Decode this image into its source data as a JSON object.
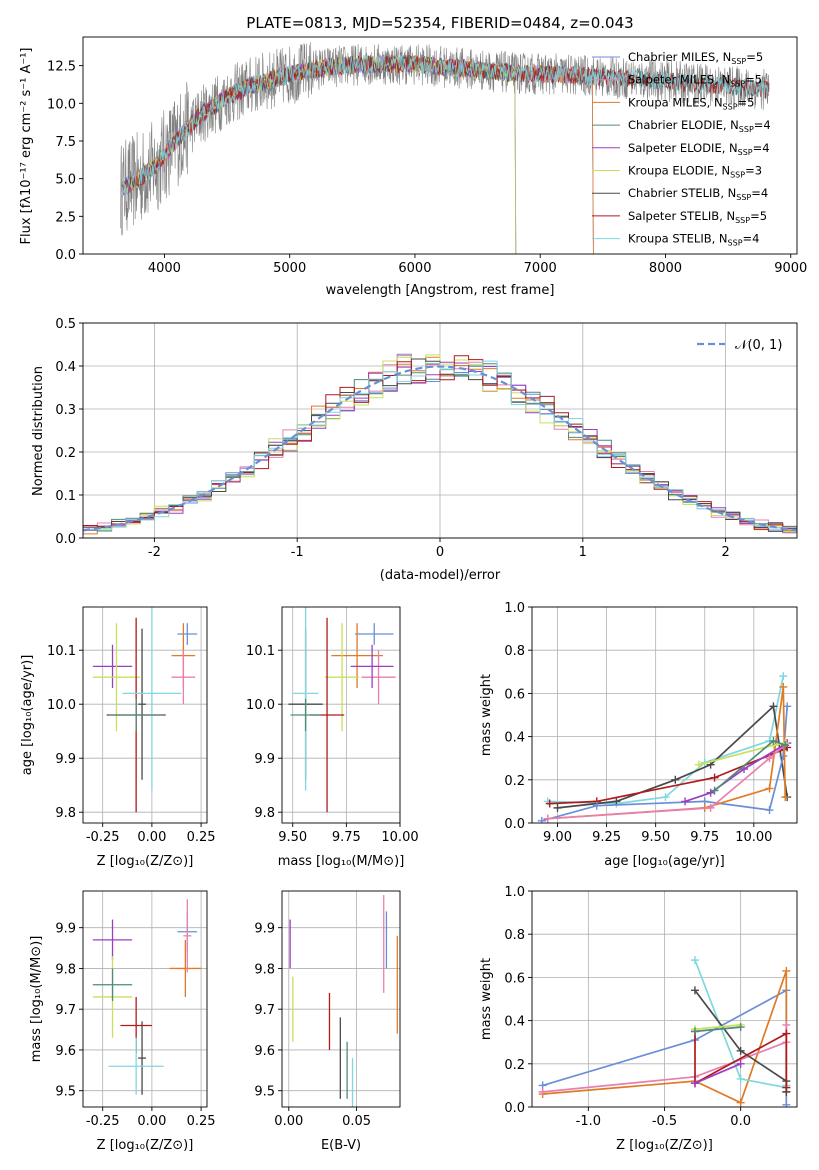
{
  "title": "PLATE=0813, MJD=52354, FIBERID=0484, z=0.043",
  "chart_data": [
    {
      "type": "line",
      "panel": "spectrum",
      "xlabel": "wavelength [Angstrom, rest frame]",
      "ylabel": "Flux [fλ10⁻¹⁷ erg cm⁻² s⁻¹ A⁻¹]",
      "xlim": [
        3350,
        9050
      ],
      "ylim": [
        0,
        14.4
      ],
      "xticks": [
        4000,
        5000,
        6000,
        7000,
        8000,
        9000
      ],
      "yticks": [
        0.0,
        2.5,
        5.0,
        7.5,
        10.0,
        12.5
      ],
      "legend_position": "top-right",
      "continuum": {
        "x": [
          3650,
          3800,
          3950,
          4100,
          4300,
          4500,
          4700,
          5000,
          5300,
          5600,
          6000,
          6400,
          6800,
          7200,
          7600,
          8000,
          8400,
          8830
        ],
        "y": [
          4.3,
          5.0,
          6.0,
          7.6,
          9.3,
          10.4,
          11.2,
          11.9,
          12.4,
          12.6,
          12.6,
          12.3,
          12.0,
          11.9,
          11.7,
          11.5,
          11.2,
          10.9
        ]
      },
      "series": [
        {
          "name": "Chabrier MILES, N$_{SSP}$=5",
          "legend": "Chabrier MILES, N",
          "sub": "SSP",
          "suffix": "=5",
          "color": "#6a8fd8",
          "xmax": 7420
        },
        {
          "name": "Salpeter MILES, N$_{SSP}$=5",
          "legend": "Salpeter MILES, N",
          "sub": "SSP",
          "suffix": "=5",
          "color": "#e87fb0",
          "xmax": 7420
        },
        {
          "name": "Kroupa MILES, N$_{SSP}$=5",
          "legend": "Kroupa MILES, N",
          "sub": "SSP",
          "suffix": "=5",
          "color": "#e07a25",
          "xmax": 7420
        },
        {
          "name": "Chabrier ELODIE, N$_{SSP}$=4",
          "legend": "Chabrier ELODIE, N",
          "sub": "SSP",
          "suffix": "=4",
          "color": "#4f8a7a",
          "xmax": 6800
        },
        {
          "name": "Salpeter ELODIE, N$_{SSP}$=4",
          "legend": "Salpeter ELODIE, N",
          "sub": "SSP",
          "suffix": "=4",
          "color": "#9b3fc2",
          "xmax": 6800
        },
        {
          "name": "Kroupa ELODIE, N$_{SSP}$=3",
          "legend": "Kroupa ELODIE, N",
          "sub": "SSP",
          "suffix": "=3",
          "color": "#c8e05a",
          "xmax": 6800
        },
        {
          "name": "Chabrier STELIB, N$_{SSP}$=4",
          "legend": "Chabrier STELIB, N",
          "sub": "SSP",
          "suffix": "=4",
          "color": "#4a4a4a",
          "xmax": 8830
        },
        {
          "name": "Salpeter STELIB, N$_{SSP}$=5",
          "legend": "Salpeter STELIB, N",
          "sub": "SSP",
          "suffix": "=5",
          "color": "#b01a1a",
          "xmax": 8830
        },
        {
          "name": "Kroupa STELIB, N$_{SSP}$=4",
          "legend": "Kroupa STELIB, N",
          "sub": "SSP",
          "suffix": "=4",
          "color": "#7fd8e0",
          "xmax": 8830
        }
      ]
    },
    {
      "type": "bar",
      "panel": "residuals",
      "xlabel": "(data-model)/error",
      "ylabel": "Normed distribution",
      "xlim": [
        -2.5,
        2.5
      ],
      "ylim": [
        0,
        0.5
      ],
      "xticks": [
        -2,
        -1,
        0,
        1,
        2
      ],
      "yticks": [
        0.0,
        0.1,
        0.2,
        0.3,
        0.4,
        0.5
      ],
      "grid": true,
      "legend_position": "top-right",
      "reference": {
        "name": "𝒩(0, 1)",
        "color": "#6a8fd8",
        "style": "dashed"
      },
      "bin_width": 0.1
    },
    {
      "type": "scatter",
      "panel": "age-vs-Z",
      "xlabel": "Z [log₁₀(Z/Z⊙)]",
      "ylabel": "age  [log₁₀(age/yr)]",
      "xlim": [
        -0.35,
        0.28
      ],
      "ylim": [
        9.78,
        10.18
      ],
      "xticks": [
        -0.25,
        0.0,
        0.25
      ],
      "yticks": [
        9.8,
        9.9,
        10.0,
        10.1
      ],
      "grid": true,
      "points": [
        {
          "x": 0.18,
          "y": 10.13,
          "xerr": 0.05,
          "yerr": 0.02,
          "color": "#6a8fd8"
        },
        {
          "x": 0.16,
          "y": 10.09,
          "xerr": 0.06,
          "yerr": 0.06,
          "color": "#e07a25"
        },
        {
          "x": 0.16,
          "y": 10.05,
          "xerr": 0.06,
          "yerr": 0.05,
          "color": "#e87fb0"
        },
        {
          "x": -0.2,
          "y": 10.07,
          "xerr": 0.1,
          "yerr": 0.04,
          "color": "#9b3fc2"
        },
        {
          "x": -0.18,
          "y": 10.05,
          "xerr": 0.12,
          "yerr": 0.1,
          "color": "#c8e05a"
        },
        {
          "x": -0.05,
          "y": 10.0,
          "xerr": 0.02,
          "yerr": 0.14,
          "color": "#4a4a4a"
        },
        {
          "x": -0.08,
          "y": 9.98,
          "xerr": 0.15,
          "yerr": 0.18,
          "color": "#b01a1a"
        },
        {
          "x": 0.0,
          "y": 10.02,
          "xerr": 0.15,
          "yerr": 0.18,
          "color": "#7fd8e0"
        },
        {
          "x": -0.08,
          "y": 9.98,
          "xerr": 0.14,
          "yerr": 0.03,
          "color": "#4f8a7a"
        }
      ]
    },
    {
      "type": "scatter",
      "panel": "age-vs-mass",
      "xlabel": "mass [log₁₀(M/M⊙)]",
      "ylabel": "",
      "xlim": [
        9.45,
        10.0
      ],
      "ylim": [
        9.78,
        10.18
      ],
      "xticks": [
        9.5,
        9.75,
        10.0
      ],
      "yticks": [
        9.8,
        9.9,
        10.0,
        10.1
      ],
      "grid": true,
      "points": [
        {
          "x": 9.88,
          "y": 10.13,
          "xerr": 0.09,
          "yerr": 0.02,
          "color": "#6a8fd8"
        },
        {
          "x": 9.8,
          "y": 10.09,
          "xerr": 0.12,
          "yerr": 0.06,
          "color": "#e07a25"
        },
        {
          "x": 9.9,
          "y": 10.05,
          "xerr": 0.08,
          "yerr": 0.05,
          "color": "#e87fb0"
        },
        {
          "x": 9.87,
          "y": 10.07,
          "xerr": 0.1,
          "yerr": 0.04,
          "color": "#9b3fc2"
        },
        {
          "x": 9.73,
          "y": 10.05,
          "xerr": 0.08,
          "yerr": 0.1,
          "color": "#c8e05a"
        },
        {
          "x": 9.56,
          "y": 10.0,
          "xerr": 0.08,
          "yerr": 0.14,
          "color": "#4a4a4a"
        },
        {
          "x": 9.66,
          "y": 9.98,
          "xerr": 0.08,
          "yerr": 0.18,
          "color": "#b01a1a"
        },
        {
          "x": 9.56,
          "y": 10.02,
          "xerr": 0.06,
          "yerr": 0.18,
          "color": "#7fd8e0"
        },
        {
          "x": 9.56,
          "y": 9.98,
          "xerr": 0.07,
          "yerr": 0.03,
          "color": "#4f8a7a"
        }
      ]
    },
    {
      "type": "line",
      "panel": "weight-vs-age",
      "xlabel": "age  [log₁₀(age/yr)]",
      "ylabel": "mass weight",
      "xlim": [
        8.87,
        10.22
      ],
      "ylim": [
        0,
        1.0
      ],
      "xticks": [
        9.0,
        9.25,
        9.5,
        9.75,
        10.0
      ],
      "yticks": [
        0.0,
        0.2,
        0.4,
        0.6,
        0.8,
        1.0
      ],
      "grid": true,
      "series": [
        {
          "color": "#7fd8e0",
          "x": [
            8.95,
            9.3,
            9.55,
            9.75,
            10.08,
            10.15
          ],
          "y": [
            0.1,
            0.09,
            0.12,
            0.28,
            0.38,
            0.68
          ]
        },
        {
          "color": "#4a4a4a",
          "x": [
            9.0,
            9.3,
            9.6,
            9.78,
            10.1,
            10.17
          ],
          "y": [
            0.07,
            0.1,
            0.2,
            0.27,
            0.54,
            0.12
          ]
        },
        {
          "color": "#b01a1a",
          "x": [
            8.96,
            9.2,
            9.8,
            10.15,
            10.17
          ],
          "y": [
            0.09,
            0.1,
            0.21,
            0.34,
            0.35
          ]
        },
        {
          "color": "#6a8fd8",
          "x": [
            8.92,
            9.2,
            9.75,
            10.08,
            10.15,
            10.17
          ],
          "y": [
            0.01,
            0.08,
            0.1,
            0.06,
            0.31,
            0.54
          ]
        },
        {
          "color": "#e07a25",
          "x": [
            8.95,
            9.75,
            10.08,
            10.15,
            10.16
          ],
          "y": [
            0.02,
            0.07,
            0.16,
            0.63,
            0.12
          ]
        },
        {
          "color": "#e87fb0",
          "x": [
            8.95,
            9.78,
            10.08,
            10.17
          ],
          "y": [
            0.02,
            0.07,
            0.3,
            0.37
          ]
        },
        {
          "color": "#9b3fc2",
          "x": [
            9.65,
            9.78,
            9.95,
            10.17
          ],
          "y": [
            0.1,
            0.14,
            0.25,
            0.37
          ]
        },
        {
          "color": "#c8e05a",
          "x": [
            9.72,
            10.1,
            10.16
          ],
          "y": [
            0.27,
            0.36,
            0.37
          ]
        },
        {
          "color": "#4f8a7a",
          "x": [
            9.8,
            10.1,
            10.16
          ],
          "y": [
            0.15,
            0.38,
            0.36
          ]
        }
      ]
    },
    {
      "type": "scatter",
      "panel": "mass-vs-Z",
      "xlabel": "Z [log₁₀(Z/Z⊙)]",
      "ylabel": "mass [log₁₀(M/M⊙)]",
      "xlim": [
        -0.35,
        0.28
      ],
      "ylim": [
        9.46,
        9.99
      ],
      "xticks": [
        -0.25,
        0.0,
        0.25
      ],
      "yticks": [
        9.5,
        9.6,
        9.7,
        9.8,
        9.9
      ],
      "grid": true,
      "points": [
        {
          "x": 0.18,
          "y": 9.89,
          "xerr": 0.05,
          "yerr": 0.05,
          "color": "#6a8fd8"
        },
        {
          "x": 0.17,
          "y": 9.8,
          "xerr": 0.08,
          "yerr": 0.07,
          "color": "#e07a25"
        },
        {
          "x": 0.18,
          "y": 9.88,
          "xerr": 0.02,
          "yerr": 0.09,
          "color": "#e87fb0"
        },
        {
          "x": -0.2,
          "y": 9.87,
          "xerr": 0.1,
          "yerr": 0.05,
          "color": "#9b3fc2"
        },
        {
          "x": -0.2,
          "y": 9.73,
          "xerr": 0.1,
          "yerr": 0.1,
          "color": "#c8e05a"
        },
        {
          "x": -0.05,
          "y": 9.58,
          "xerr": 0.02,
          "yerr": 0.09,
          "color": "#4a4a4a"
        },
        {
          "x": -0.08,
          "y": 9.66,
          "xerr": 0.08,
          "yerr": 0.07,
          "color": "#b01a1a"
        },
        {
          "x": -0.08,
          "y": 9.56,
          "xerr": 0.14,
          "yerr": 0.07,
          "color": "#7fd8e0"
        },
        {
          "x": -0.2,
          "y": 9.76,
          "xerr": 0.1,
          "yerr": 0.04,
          "color": "#4f8a7a"
        }
      ]
    },
    {
      "type": "scatter",
      "panel": "mass-vs-EBV",
      "xlabel": "E(B-V)",
      "ylabel": "",
      "xlim": [
        -0.005,
        0.082
      ],
      "ylim": [
        9.46,
        9.99
      ],
      "xticks": [
        0.0,
        0.05
      ],
      "yticks": [
        9.5,
        9.6,
        9.7,
        9.8,
        9.9
      ],
      "grid": true,
      "points": [
        {
          "x": 0.072,
          "y": 9.87,
          "yerr": 0.07,
          "color": "#6a8fd8"
        },
        {
          "x": 0.08,
          "y": 9.76,
          "yerr": 0.12,
          "color": "#e07a25"
        },
        {
          "x": 0.07,
          "y": 9.86,
          "yerr": 0.12,
          "color": "#e87fb0"
        },
        {
          "x": 0.001,
          "y": 9.86,
          "yerr": 0.06,
          "color": "#9b3fc2"
        },
        {
          "x": 0.003,
          "y": 9.7,
          "yerr": 0.08,
          "color": "#c8e05a"
        },
        {
          "x": 0.038,
          "y": 9.58,
          "yerr": 0.1,
          "color": "#4a4a4a"
        },
        {
          "x": 0.03,
          "y": 9.67,
          "yerr": 0.07,
          "color": "#b01a1a"
        },
        {
          "x": 0.047,
          "y": 9.52,
          "yerr": 0.06,
          "color": "#7fd8e0"
        },
        {
          "x": 0.043,
          "y": 9.55,
          "yerr": 0.07,
          "color": "#4f8a7a"
        }
      ]
    },
    {
      "type": "line",
      "panel": "weight-vs-Z",
      "xlabel": "Z [log₁₀(Z/Z⊙)]",
      "ylabel": "mass weight",
      "xlim": [
        -1.37,
        0.37
      ],
      "ylim": [
        0,
        1.0
      ],
      "xticks": [
        -1.0,
        -0.5,
        0.0
      ],
      "yticks": [
        0.0,
        0.2,
        0.4,
        0.6,
        0.8,
        1.0
      ],
      "grid": true,
      "series": [
        {
          "color": "#6a8fd8",
          "x": [
            -1.3,
            -0.3,
            0.3,
            0.3
          ],
          "y": [
            0.1,
            0.31,
            0.54,
            0.01
          ]
        },
        {
          "color": "#e07a25",
          "x": [
            -1.3,
            -0.3,
            0.0,
            0.3,
            0.3
          ],
          "y": [
            0.06,
            0.12,
            0.02,
            0.63,
            0.07
          ]
        },
        {
          "color": "#e87fb0",
          "x": [
            -1.3,
            -0.3,
            0.3,
            0.3
          ],
          "y": [
            0.07,
            0.14,
            0.3,
            0.38
          ]
        },
        {
          "color": "#7fd8e0",
          "x": [
            -0.3,
            0.0,
            0.3,
            0.3
          ],
          "y": [
            0.68,
            0.13,
            0.09,
            0.1
          ]
        },
        {
          "color": "#4a4a4a",
          "x": [
            -0.3,
            0.0,
            0.3,
            0.3
          ],
          "y": [
            0.54,
            0.26,
            0.12,
            0.07
          ]
        },
        {
          "color": "#b01a1a",
          "x": [
            -0.3,
            -0.3,
            0.3,
            0.3
          ],
          "y": [
            0.35,
            0.11,
            0.34,
            0.09
          ]
        },
        {
          "color": "#9b3fc2",
          "x": [
            -0.3,
            0.0
          ],
          "y": [
            0.11,
            0.2
          ]
        },
        {
          "color": "#c8e05a",
          "x": [
            -0.3,
            0.0
          ],
          "y": [
            0.36,
            0.38
          ]
        },
        {
          "color": "#4f8a7a",
          "x": [
            -0.3,
            0.0
          ],
          "y": [
            0.35,
            0.37
          ]
        }
      ]
    }
  ]
}
